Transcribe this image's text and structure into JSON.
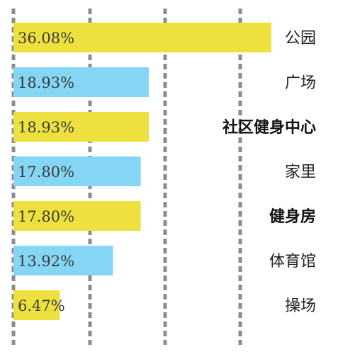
{
  "chart_data": {
    "type": "bar",
    "orientation": "horizontal",
    "title": "",
    "xlabel": "",
    "ylabel": "",
    "xlim": [
      0,
      42
    ],
    "grid": true,
    "legend": "none",
    "categories": [
      "公园",
      "广场",
      "社区健身中心",
      "家里",
      "健身房",
      "体育馆",
      "操场"
    ],
    "values": [
      36.08,
      18.93,
      18.93,
      17.8,
      17.8,
      13.92,
      6.47
    ],
    "value_labels": [
      "36.08%",
      "18.93%",
      "18.93%",
      "17.80%",
      "17.80%",
      "13.92%",
      "6.47%"
    ],
    "bar_colors": [
      "#ede03f",
      "#84d6f4",
      "#ede03f",
      "#84d6f4",
      "#ede03f",
      "#84d6f4",
      "#ede03f"
    ],
    "bold_categories": [
      "社区健身中心",
      "健身房"
    ]
  },
  "colors": {
    "grid": "#8c8c8c",
    "yellow": "#ede03f",
    "blue": "#84d6f4"
  }
}
